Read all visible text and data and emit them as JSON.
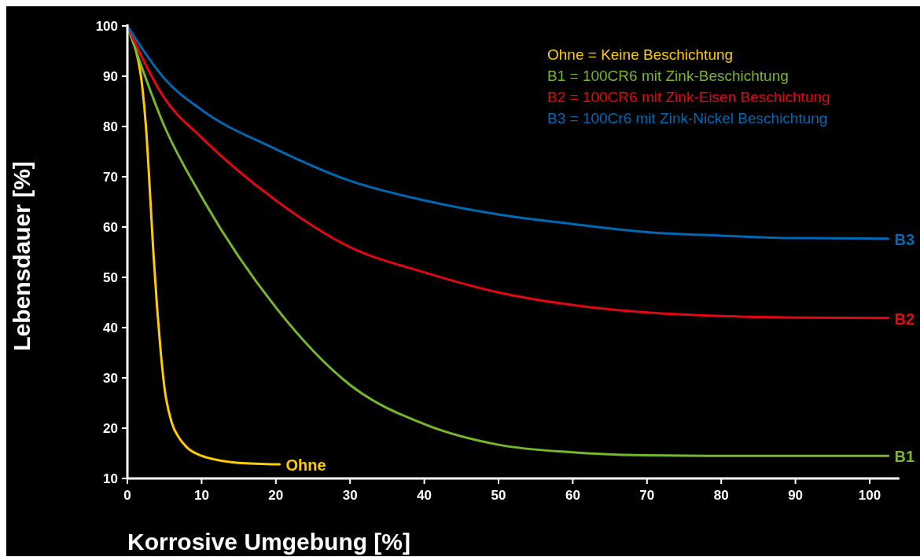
{
  "chart_data": {
    "type": "line",
    "xlabel": "Korrosive Umgebung [%]",
    "ylabel": "Lebensdauer [%]",
    "xlim": [
      0,
      104
    ],
    "ylim": [
      10,
      100
    ],
    "xticks": [
      0,
      10,
      20,
      30,
      40,
      50,
      60,
      70,
      80,
      90,
      100
    ],
    "yticks": [
      10,
      20,
      30,
      40,
      50,
      60,
      70,
      80,
      90,
      100
    ],
    "grid": false,
    "marker": "none",
    "line_style": "solid",
    "annotations": [
      "Ohne = Keine Beschichtung",
      "B1 = 100CR6 mit Zink-Beschichtung",
      "B2 = 100CR6 mit Zink-Eisen Beschichtung",
      "B3 = 100Cr6 mit Zink-Nickel Beschichtung"
    ],
    "series": [
      {
        "name": "Ohne",
        "color": "#ffcc00",
        "x": [
          0,
          1,
          2,
          2.5,
          3,
          3.5,
          4,
          4.5,
          5,
          6,
          7,
          8,
          10,
          12,
          15,
          20.5
        ],
        "values": [
          100,
          96,
          88,
          80,
          68,
          55,
          44,
          35,
          28,
          21,
          18,
          16.2,
          14.5,
          13.7,
          13.1,
          12.8
        ]
      },
      {
        "name": "B1",
        "color": "#76b82a",
        "x": [
          0,
          5,
          10,
          20,
          30,
          40,
          50,
          60,
          70,
          80,
          90,
          102.5
        ],
        "values": [
          100,
          80,
          66,
          44,
          28.6,
          20.8,
          16.7,
          15.2,
          14.6,
          14.5,
          14.5,
          14.5
        ]
      },
      {
        "name": "B2",
        "color": "#e30613",
        "x": [
          0,
          5,
          10,
          20,
          30,
          40,
          50,
          60,
          70,
          80,
          90,
          102.5
        ],
        "values": [
          100,
          85.6,
          77.8,
          65.3,
          56,
          51,
          47,
          44.5,
          43,
          42.3,
          42,
          41.9
        ]
      },
      {
        "name": "B3",
        "color": "#0069b4",
        "x": [
          0,
          5,
          10,
          20,
          30,
          40,
          50,
          60,
          70,
          80,
          90,
          102.5
        ],
        "values": [
          100,
          89.5,
          83.3,
          75.5,
          69.2,
          65.3,
          62.5,
          60.6,
          59,
          58.3,
          57.8,
          57.7
        ]
      }
    ]
  }
}
